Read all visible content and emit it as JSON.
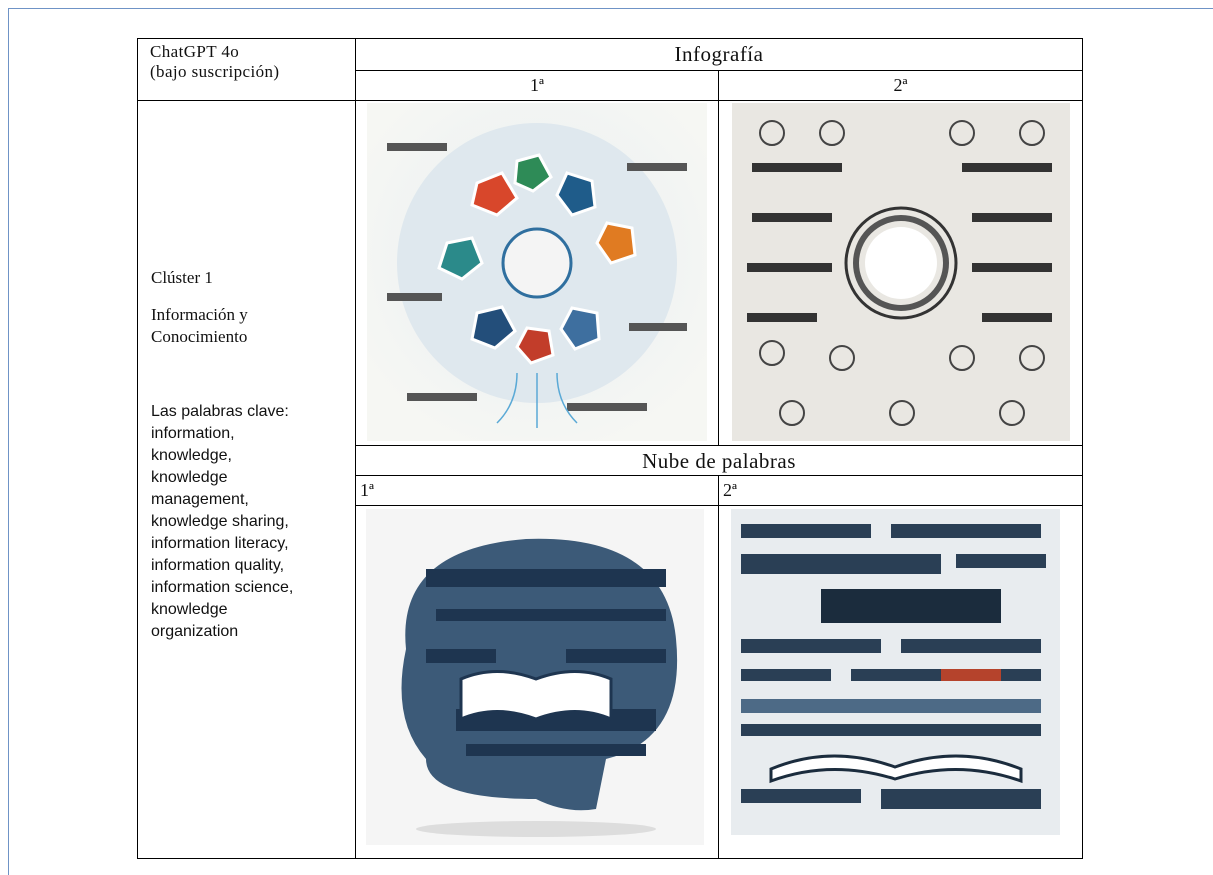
{
  "table": {
    "corner": [
      "ChatGPT 4o",
      "(bajo suscripción)"
    ],
    "sections": [
      {
        "title": "Infografía",
        "columns": [
          "1ª",
          "2ª"
        ]
      },
      {
        "title": "Nube de palabras",
        "columns": [
          "1ª",
          "2ª"
        ]
      }
    ],
    "row_label": {
      "cluster": "Clúster 1",
      "topic": [
        "Información y",
        "Conocimiento"
      ],
      "keywords_heading": "Las palabras clave:",
      "keywords": [
        "information,",
        "knowledge,",
        "knowledge",
        "management,",
        "knowledge sharing,",
        "information literacy,",
        "information quality,",
        "information science,",
        "knowledge",
        "organization"
      ]
    }
  }
}
